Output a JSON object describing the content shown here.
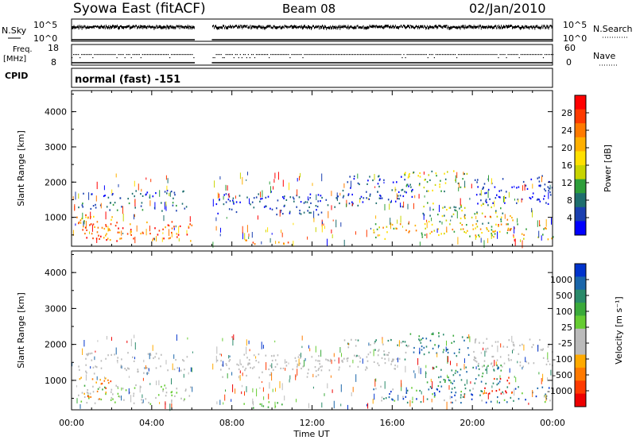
{
  "header": {
    "station": "Syowa East (fitACF)",
    "beam": "Beam 08",
    "date": "02/Jan/2010"
  },
  "noise_panel": {
    "left_label": "N.Sky",
    "right_label": "N.Search",
    "left_ticks": [
      "10^5",
      "10^0"
    ],
    "right_ticks": [
      "10^5",
      "10^0"
    ]
  },
  "freq_panel": {
    "left_label_1": "Freq.",
    "left_label_2": "[MHz]",
    "right_label": "Nave",
    "left_ticks": [
      "18",
      "8"
    ],
    "right_ticks": [
      "60",
      "0"
    ]
  },
  "cpid": {
    "label": "CPID",
    "value": "normal (fast) -151"
  },
  "chart_data": [
    {
      "type": "heatmap",
      "name": "power",
      "ylabel": "Slant Range [km]",
      "xlabel": "",
      "x_ticks": [
        "00:00",
        "04:00",
        "08:00",
        "12:00",
        "16:00",
        "20:00",
        "00:00"
      ],
      "xlim_hours": [
        0,
        24
      ],
      "ylim_km": [
        180,
        4600
      ],
      "y_ticks": [
        1000,
        2000,
        3000,
        4000
      ],
      "data_gap_hours": [
        6.15,
        7.0
      ],
      "colorbar": {
        "label": "Power [dB]",
        "ticks": [
          "28",
          "24",
          "20",
          "16",
          "12",
          "8",
          "4"
        ],
        "colors": [
          "#ff0000",
          "#ff3a00",
          "#ff7a00",
          "#ffb000",
          "#ffe000",
          "#c8d400",
          "#2e9e3a",
          "#1e6e6e",
          "#1a3fb0",
          "#0000ff"
        ]
      }
    },
    {
      "type": "heatmap",
      "name": "velocity",
      "ylabel": "Slant Range [km]",
      "xlabel": "Time UT",
      "x_ticks": [
        "00:00",
        "04:00",
        "08:00",
        "12:00",
        "16:00",
        "20:00",
        "00:00"
      ],
      "xlim_hours": [
        0,
        24
      ],
      "ylim_km": [
        180,
        4600
      ],
      "y_ticks": [
        1000,
        2000,
        3000,
        4000
      ],
      "data_gap_hours": [
        6.15,
        7.0
      ],
      "colorbar": {
        "label": "Velocity [m s⁻¹]",
        "ticks": [
          "1000",
          "500",
          "100",
          "25",
          "-25",
          "-100",
          "-500",
          "-1000"
        ],
        "colors": [
          "#0033cc",
          "#1a66aa",
          "#2a8a6a",
          "#3aaa3a",
          "#66cc33",
          "#bbbbbb",
          "#bbbbbb",
          "#ffaa00",
          "#ff7a00",
          "#ff3a00",
          "#ee0000"
        ]
      }
    }
  ]
}
